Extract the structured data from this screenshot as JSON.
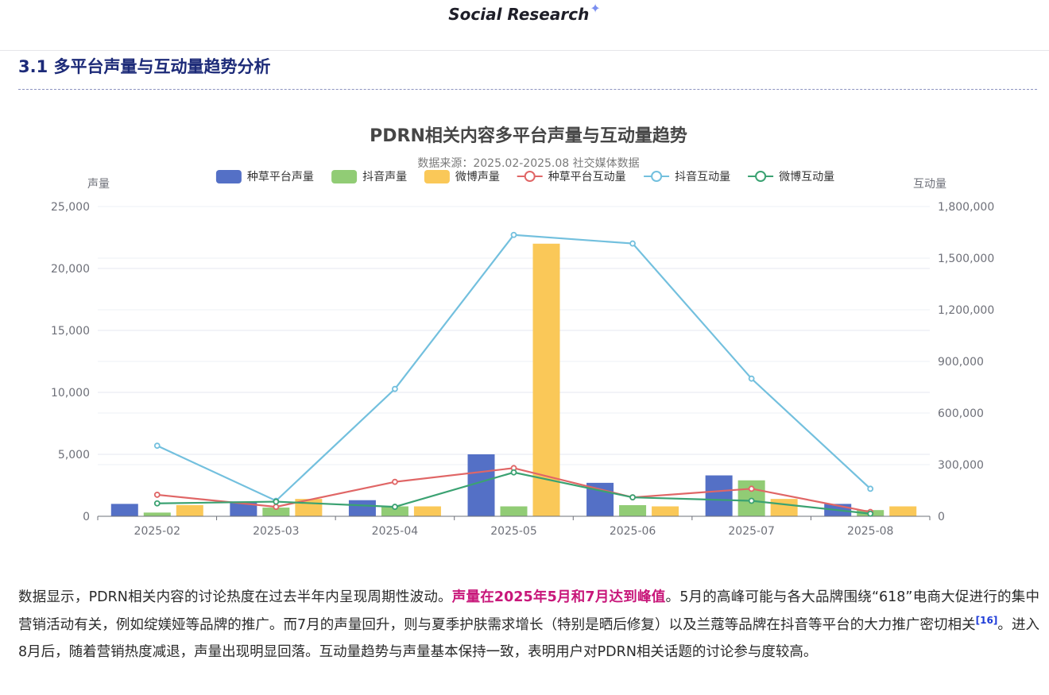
{
  "header": {
    "brand": "Social Research",
    "brand_icon": "sparkle-icon"
  },
  "section": {
    "title": "3.1 多平台声量与互动量趋势分析"
  },
  "chart_data": {
    "type": "bar",
    "title": "PDRN相关内容多平台声量与互动量趋势",
    "subtitle": "数据来源：2025.02-2025.08 社交媒体数据",
    "categories": [
      "2025-02",
      "2025-03",
      "2025-04",
      "2025-05",
      "2025-06",
      "2025-07",
      "2025-08"
    ],
    "y_left": {
      "label": "声量",
      "min": 0,
      "max": 25000,
      "ticks": [
        0,
        5000,
        10000,
        15000,
        20000,
        25000
      ],
      "tick_labels": [
        "0",
        "5,000",
        "10,000",
        "15,000",
        "20,000",
        "25,000"
      ]
    },
    "y_right": {
      "label": "互动量",
      "min": 0,
      "max": 1800000,
      "ticks": [
        0,
        300000,
        600000,
        900000,
        1200000,
        1500000,
        1800000
      ],
      "tick_labels": [
        "0",
        "300,000",
        "600,000",
        "900,000",
        "1,200,000",
        "1,500,000",
        "1,800,000"
      ]
    },
    "legend_position": "top",
    "grid": true,
    "series": [
      {
        "name": "种草平台声量",
        "kind": "bar",
        "axis": "left",
        "color": "#5470c6",
        "values": [
          1000,
          1200,
          1300,
          5000,
          2700,
          3300,
          1000
        ]
      },
      {
        "name": "抖音声量",
        "kind": "bar",
        "axis": "left",
        "color": "#91cc75",
        "values": [
          300,
          700,
          800,
          800,
          900,
          2900,
          500
        ]
      },
      {
        "name": "微博声量",
        "kind": "bar",
        "axis": "left",
        "color": "#fac858",
        "values": [
          900,
          1400,
          800,
          22000,
          800,
          1400,
          800
        ]
      },
      {
        "name": "种草平台互动量",
        "kind": "line",
        "axis": "right",
        "color": "#e06666",
        "values": [
          125000,
          55000,
          200000,
          280000,
          110000,
          160000,
          25000
        ]
      },
      {
        "name": "抖音互动量",
        "kind": "line",
        "axis": "right",
        "color": "#73c0de",
        "values": [
          410000,
          90000,
          740000,
          1635000,
          1585000,
          800000,
          160000
        ]
      },
      {
        "name": "微博互动量",
        "kind": "line",
        "axis": "right",
        "color": "#3ba272",
        "values": [
          75000,
          85000,
          55000,
          255000,
          110000,
          90000,
          15000
        ]
      }
    ]
  },
  "paragraph": {
    "part1": "数据显示，PDRN相关内容的讨论热度在过去半年内呈现周期性波动。",
    "highlight": "声量在2025年5月和7月达到峰值",
    "part2": "。5月的高峰可能与各大品牌围绕“618”电商大促进行的集中营销活动有关，例如绽媄娅等品牌的推广。而7月的声量回升，则与夏季护肤需求增长（特别是晒后修复）以及兰蔻等品牌在抖音等平台的大力推广密切相关",
    "citation": "[16]",
    "part3": "。进入8月后，随着营销热度减退，声量出现明显回落。互动量趋势与声量基本保持一致，表明用户对PDRN相关话题的讨论参与度较高。"
  }
}
